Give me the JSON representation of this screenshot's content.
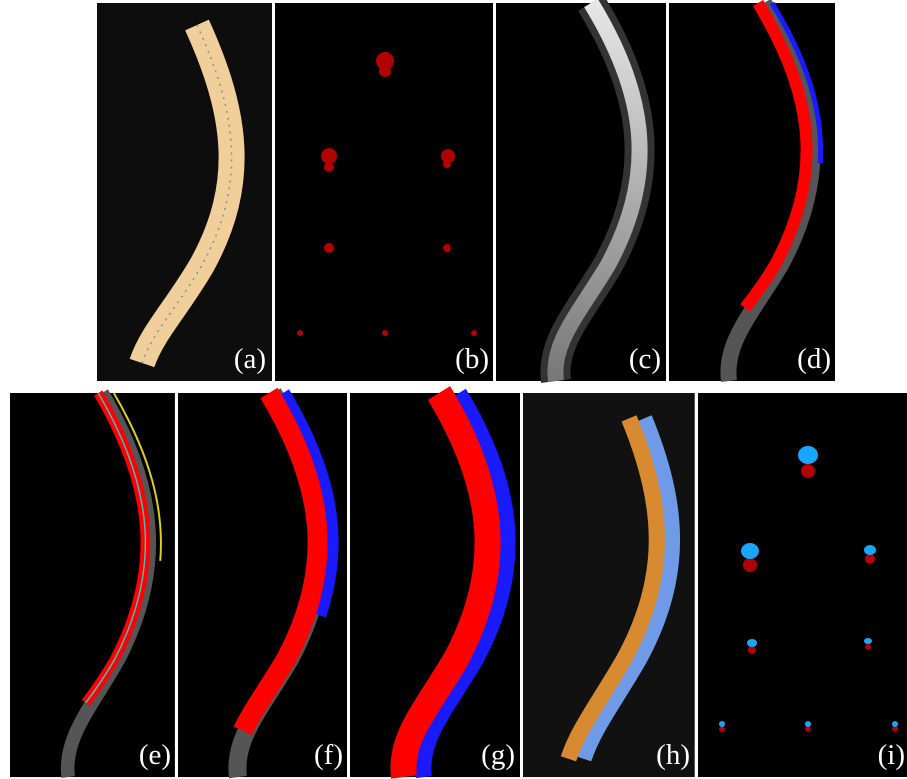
{
  "panels": [
    {
      "label": "(a)"
    },
    {
      "label": "(b)"
    },
    {
      "label": "(c)"
    },
    {
      "label": "(d)"
    },
    {
      "label": "(e)"
    },
    {
      "label": "(f)"
    },
    {
      "label": "(g)"
    },
    {
      "label": "(h)"
    },
    {
      "label": "(i)"
    }
  ]
}
